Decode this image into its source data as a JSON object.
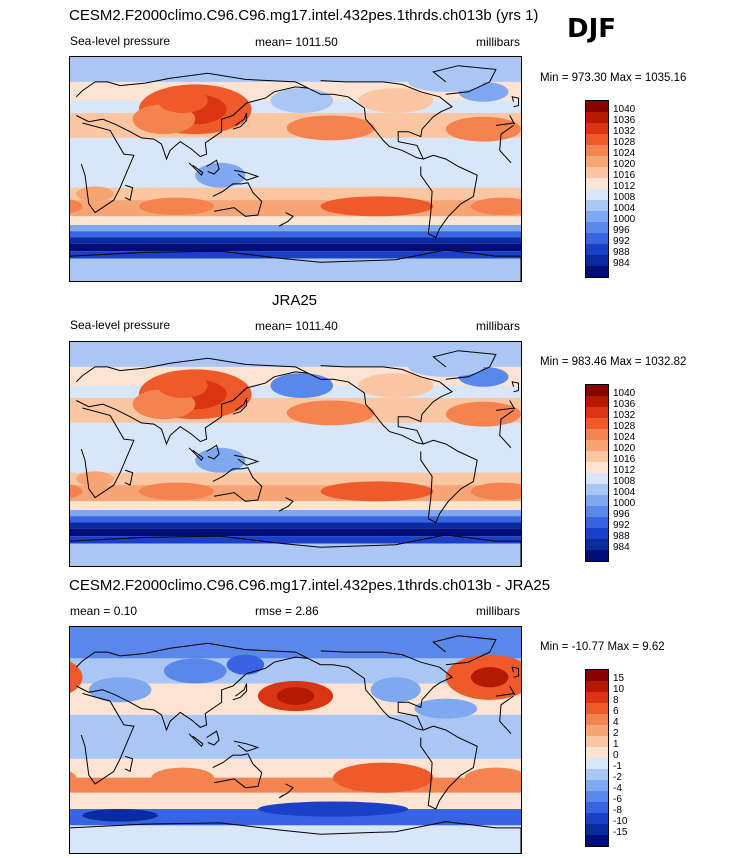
{
  "season": "DJF",
  "panels": [
    {
      "title": "CESM2.F2000climo.C96.C96.mg17.intel.432pes.1thrds.ch013b (yrs 1)",
      "left_label": "Sea-level pressure",
      "mean_label": "mean= 1011.50",
      "units": "millibars",
      "minmax": "Min = 973.30 Max = 1035.16"
    },
    {
      "title": "JRA25",
      "left_label": "Sea-level pressure",
      "mean_label": "mean= 1011.40",
      "units": "millibars",
      "minmax": "Min = 983.46 Max = 1032.82"
    },
    {
      "title": "CESM2.F2000climo.C96.C96.mg17.intel.432pes.1thrds.ch013b - JRA25",
      "left_label": "mean =   0.10",
      "mean_label": "rmse =   2.86",
      "units": "millibars",
      "minmax": "Min = -10.77 Max =   9.62"
    }
  ],
  "chart_data": [
    {
      "type": "heatmap",
      "title": "CESM2.F2000climo.C96.C96.mg17.intel.432pes.1thrds.ch013b (yrs 1)",
      "variable": "Sea-level pressure",
      "units": "millibars",
      "mean": 1011.5,
      "min": 973.3,
      "max": 1035.16,
      "colorbar_levels": [
        1040,
        1036,
        1032,
        1028,
        1024,
        1020,
        1016,
        1012,
        1008,
        1004,
        1000,
        996,
        992,
        988,
        984
      ],
      "colorbar_colors": [
        "#8b0000",
        "#b31a00",
        "#d93513",
        "#ee5a2a",
        "#f5834f",
        "#f8a576",
        "#fbc7a3",
        "#fde4d2",
        "#d9e6fa",
        "#aac6f5",
        "#7ea8ef",
        "#5a87ea",
        "#3864e3",
        "#1a40c8",
        "#0a2aa0",
        "#000c78"
      ]
    },
    {
      "type": "heatmap",
      "title": "JRA25",
      "variable": "Sea-level pressure",
      "units": "millibars",
      "mean": 1011.4,
      "min": 983.46,
      "max": 1032.82,
      "colorbar_levels": [
        1040,
        1036,
        1032,
        1028,
        1024,
        1020,
        1016,
        1012,
        1008,
        1004,
        1000,
        996,
        992,
        988,
        984
      ],
      "colorbar_colors": [
        "#8b0000",
        "#b31a00",
        "#d93513",
        "#ee5a2a",
        "#f5834f",
        "#f8a576",
        "#fbc7a3",
        "#fde4d2",
        "#d9e6fa",
        "#aac6f5",
        "#7ea8ef",
        "#5a87ea",
        "#3864e3",
        "#1a40c8",
        "#0a2aa0",
        "#000c78"
      ]
    },
    {
      "type": "heatmap",
      "title": "CESM2.F2000climo.C96.C96.mg17.intel.432pes.1thrds.ch013b - JRA25",
      "units": "millibars",
      "mean": 0.1,
      "rmse": 2.86,
      "min": -10.77,
      "max": 9.62,
      "colorbar_levels": [
        15,
        10,
        8,
        6,
        4,
        2,
        1,
        0,
        -1,
        -2,
        -4,
        -6,
        -8,
        -10,
        -15
      ],
      "colorbar_colors": [
        "#8b0000",
        "#b31a00",
        "#d93513",
        "#ee5a2a",
        "#f5834f",
        "#f8a576",
        "#fbc7a3",
        "#fde4d2",
        "#d9e6fa",
        "#aac6f5",
        "#7ea8ef",
        "#5a87ea",
        "#3864e3",
        "#1a40c8",
        "#0a2aa0",
        "#000c78"
      ]
    }
  ]
}
